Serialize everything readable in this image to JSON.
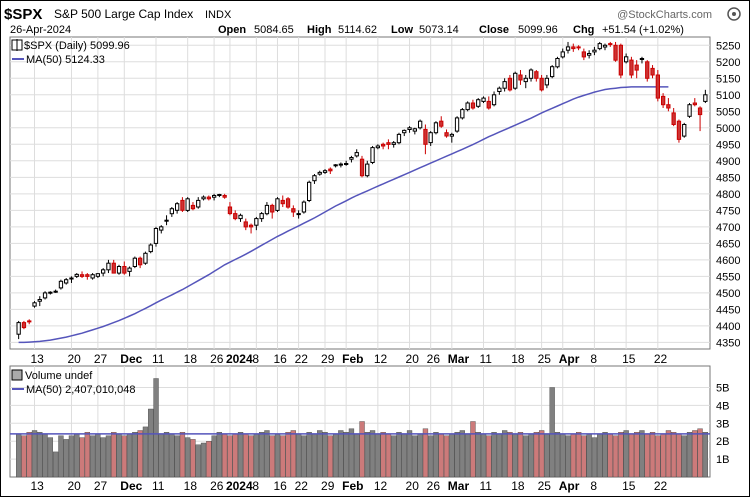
{
  "header": {
    "symbol": "$SPX",
    "name": "S&P 500 Large Cap Index",
    "exchange": "INDX",
    "watermark": "@StockCharts.com",
    "date": "26-Apr-2024",
    "open_label": "Open",
    "open": "5084.65",
    "high_label": "High",
    "high": "5114.62",
    "low_label": "Low",
    "low": "5073.14",
    "close_label": "Close",
    "close": "5099.96",
    "chg_label": "Chg",
    "chg": "+51.54 (+1.02%)"
  },
  "legend": {
    "price": "$SPX (Daily) 5099.96",
    "ma": "MA(50) 5124.33",
    "volume": "Volume undef",
    "vol_ma": "MA(50) 2,407,010,048"
  },
  "colors": {
    "up": "#000000",
    "down": "#cc0000",
    "down_fill": "#cc3333",
    "ma_line": "#5555bb",
    "vol_up": "#808080",
    "vol_down": "#cc7a7a",
    "grid": "#dddddd"
  },
  "chart_data": [
    {
      "type": "candlestick",
      "title": "$SPX (Daily) 5099.96",
      "ylim": [
        4330,
        5275
      ],
      "y_ticks": [
        4350,
        4400,
        4450,
        4500,
        4550,
        4600,
        4650,
        4700,
        4750,
        4800,
        4850,
        4900,
        4950,
        5000,
        5050,
        5100,
        5150,
        5200,
        5250
      ],
      "x_ticks": [
        "13",
        "20",
        "27",
        "Dec",
        "11",
        "18",
        "26",
        "2024",
        "8",
        "16",
        "22",
        "29",
        "Feb",
        "12",
        "20",
        "26",
        "Mar",
        "11",
        "18",
        "25",
        "Apr",
        "8",
        "15",
        "22"
      ],
      "x_tick_bold": [
        "Dec",
        "2024",
        "Feb",
        "Mar",
        "Apr"
      ],
      "ma": [
        4350,
        4350,
        4351,
        4352,
        4353,
        4355,
        4357,
        4360,
        4363,
        4366,
        4370,
        4374,
        4378,
        4383,
        4388,
        4393,
        4398,
        4404,
        4410,
        4416,
        4423,
        4430,
        4437,
        4445,
        4453,
        4461,
        4470,
        4478,
        4486,
        4494,
        4502,
        4510,
        4519,
        4528,
        4537,
        4546,
        4555,
        4565,
        4575,
        4585,
        4593,
        4601,
        4609,
        4617,
        4626,
        4635,
        4644,
        4653,
        4662,
        4671,
        4679,
        4687,
        4695,
        4703,
        4711,
        4719,
        4727,
        4736,
        4745,
        4754,
        4763,
        4771,
        4779,
        4787,
        4795,
        4802,
        4809,
        4816,
        4823,
        4830,
        4837,
        4844,
        4851,
        4858,
        4865,
        4872,
        4879,
        4886,
        4893,
        4900,
        4907,
        4914,
        4921,
        4928,
        4935,
        4942,
        4949,
        4957,
        4965,
        4973,
        4980,
        4987,
        4994,
        5001,
        5008,
        5015,
        5022,
        5029,
        5037,
        5045,
        5052,
        5059,
        5066,
        5073,
        5080,
        5087,
        5093,
        5098,
        5103,
        5108,
        5112,
        5116,
        5118,
        5120,
        5122,
        5123,
        5124,
        5124,
        5124,
        5124,
        5124,
        5124,
        5124,
        5124
      ],
      "ohlc": [
        [
          4375,
          4415,
          4360,
          4410
        ],
        [
          4410,
          4415,
          4390,
          4395
        ],
        [
          4415,
          4420,
          4405,
          4412
        ],
        [
          4460,
          4475,
          4455,
          4470
        ],
        [
          4475,
          4490,
          4460,
          4480
        ],
        [
          4485,
          4505,
          4480,
          4500
        ],
        [
          4500,
          4505,
          4495,
          4502
        ],
        [
          4505,
          4510,
          4500,
          4505
        ],
        [
          4515,
          4540,
          4510,
          4535
        ],
        [
          4530,
          4545,
          4525,
          4540
        ],
        [
          4542,
          4550,
          4530,
          4545
        ],
        [
          4550,
          4560,
          4545,
          4556
        ],
        [
          4555,
          4565,
          4545,
          4550
        ],
        [
          4555,
          4560,
          4540,
          4550
        ],
        [
          4545,
          4560,
          4540,
          4555
        ],
        [
          4550,
          4560,
          4545,
          4558
        ],
        [
          4560,
          4575,
          4550,
          4570
        ],
        [
          4570,
          4600,
          4560,
          4590
        ],
        [
          4590,
          4600,
          4560,
          4560
        ],
        [
          4560,
          4585,
          4555,
          4580
        ],
        [
          4580,
          4595,
          4555,
          4560
        ],
        [
          4565,
          4580,
          4550,
          4575
        ],
        [
          4580,
          4610,
          4575,
          4605
        ],
        [
          4605,
          4610,
          4575,
          4585
        ],
        [
          4590,
          4625,
          4585,
          4620
        ],
        [
          4625,
          4650,
          4620,
          4645
        ],
        [
          4650,
          4700,
          4640,
          4695
        ],
        [
          4690,
          4705,
          4680,
          4700
        ],
        [
          4720,
          4735,
          4705,
          4720
        ],
        [
          4740,
          4760,
          4730,
          4755
        ],
        [
          4750,
          4775,
          4740,
          4770
        ],
        [
          4780,
          4790,
          4745,
          4750
        ],
        [
          4750,
          4790,
          4745,
          4785
        ],
        [
          4765,
          4775,
          4750,
          4755
        ],
        [
          4760,
          4790,
          4755,
          4780
        ],
        [
          4785,
          4795,
          4780,
          4790
        ],
        [
          4790,
          4795,
          4780,
          4785
        ],
        [
          4790,
          4800,
          4780,
          4795
        ],
        [
          4795,
          4800,
          4790,
          4798
        ],
        [
          4795,
          4800,
          4785,
          4790
        ],
        [
          4760,
          4775,
          4735,
          4740
        ],
        [
          4740,
          4750,
          4720,
          4725
        ],
        [
          4725,
          4740,
          4715,
          4735
        ],
        [
          4715,
          4725,
          4690,
          4700
        ],
        [
          4705,
          4710,
          4680,
          4700
        ],
        [
          4705,
          4730,
          4690,
          4725
        ],
        [
          4725,
          4745,
          4715,
          4740
        ],
        [
          4740,
          4775,
          4735,
          4765
        ],
        [
          4765,
          4770,
          4725,
          4745
        ],
        [
          4750,
          4790,
          4745,
          4785
        ],
        [
          4780,
          4795,
          4760,
          4770
        ],
        [
          4785,
          4790,
          4755,
          4760
        ],
        [
          4755,
          4765,
          4730,
          4745
        ],
        [
          4740,
          4750,
          4725,
          4740
        ],
        [
          4745,
          4780,
          4740,
          4775
        ],
        [
          4780,
          4840,
          4775,
          4835
        ],
        [
          4840,
          4860,
          4830,
          4855
        ],
        [
          4860,
          4870,
          4855,
          4865
        ],
        [
          4865,
          4875,
          4860,
          4870
        ],
        [
          4875,
          4880,
          4860,
          4870
        ],
        [
          4885,
          4890,
          4880,
          4888
        ],
        [
          4890,
          4895,
          4880,
          4890
        ],
        [
          4890,
          4900,
          4885,
          4892
        ],
        [
          4905,
          4915,
          4895,
          4910
        ],
        [
          4915,
          4935,
          4910,
          4925
        ],
        [
          4905,
          4915,
          4850,
          4855
        ],
        [
          4855,
          4900,
          4850,
          4890
        ],
        [
          4895,
          4945,
          4890,
          4940
        ],
        [
          4940,
          4950,
          4935,
          4945
        ],
        [
          4950,
          4955,
          4935,
          4945
        ],
        [
          4955,
          4965,
          4935,
          4950
        ],
        [
          4950,
          4960,
          4940,
          4955
        ],
        [
          4955,
          4985,
          4950,
          4980
        ],
        [
          4985,
          4995,
          4975,
          4992
        ],
        [
          4995,
          5005,
          4985,
          5000
        ],
        [
          4990,
          5000,
          4980,
          4997
        ],
        [
          5000,
          5025,
          4995,
          5020
        ],
        [
          4995,
          5010,
          4920,
          4950
        ],
        [
          4955,
          4990,
          4945,
          4985
        ],
        [
          4985,
          5020,
          4980,
          5015
        ],
        [
          5020,
          5035,
          5000,
          5005
        ],
        [
          4985,
          4995,
          4970,
          4975
        ],
        [
          4975,
          4985,
          4955,
          4980
        ],
        [
          4990,
          5035,
          4985,
          5030
        ],
        [
          5030,
          5060,
          5025,
          5055
        ],
        [
          5055,
          5080,
          5050,
          5075
        ],
        [
          5075,
          5085,
          5055,
          5060
        ],
        [
          5065,
          5090,
          5060,
          5085
        ],
        [
          5080,
          5095,
          5075,
          5090
        ],
        [
          5080,
          5095,
          5055,
          5060
        ],
        [
          5070,
          5110,
          5065,
          5100
        ],
        [
          5110,
          5125,
          5100,
          5120
        ],
        [
          5120,
          5150,
          5110,
          5140
        ],
        [
          5150,
          5160,
          5110,
          5115
        ],
        [
          5120,
          5170,
          5115,
          5165
        ],
        [
          5160,
          5175,
          5130,
          5145
        ],
        [
          5140,
          5160,
          5120,
          5150
        ],
        [
          5150,
          5180,
          5140,
          5175
        ],
        [
          5170,
          5175,
          5140,
          5150
        ],
        [
          5150,
          5160,
          5110,
          5115
        ],
        [
          5130,
          5160,
          5120,
          5150
        ],
        [
          5155,
          5190,
          5150,
          5185
        ],
        [
          5185,
          5215,
          5180,
          5210
        ],
        [
          5215,
          5240,
          5210,
          5230
        ],
        [
          5235,
          5260,
          5225,
          5245
        ],
        [
          5245,
          5255,
          5230,
          5240
        ],
        [
          5245,
          5250,
          5235,
          5243
        ],
        [
          5230,
          5240,
          5205,
          5215
        ],
        [
          5220,
          5235,
          5210,
          5225
        ],
        [
          5230,
          5245,
          5220,
          5235
        ],
        [
          5240,
          5260,
          5235,
          5255
        ],
        [
          5245,
          5255,
          5235,
          5250
        ],
        [
          5255,
          5260,
          5245,
          5254
        ],
        [
          5250,
          5260,
          5200,
          5205
        ],
        [
          5250,
          5255,
          5150,
          5160
        ],
        [
          5200,
          5225,
          5195,
          5215
        ],
        [
          5205,
          5215,
          5150,
          5160
        ],
        [
          5190,
          5205,
          5150,
          5175
        ],
        [
          5210,
          5215,
          5195,
          5210
        ],
        [
          5200,
          5205,
          5140,
          5150
        ],
        [
          5180,
          5190,
          5150,
          5160
        ],
        [
          5160,
          5175,
          5080,
          5090
        ],
        [
          5095,
          5105,
          5060,
          5070
        ],
        [
          5070,
          5090,
          5050,
          5060
        ],
        [
          5045,
          5060,
          5005,
          5010
        ],
        [
          5020,
          5025,
          4955,
          4965
        ],
        [
          4975,
          5015,
          4970,
          5010
        ],
        [
          5035,
          5075,
          5030,
          5070
        ],
        [
          5075,
          5090,
          5065,
          5070
        ],
        [
          5060,
          5065,
          4990,
          5040
        ],
        [
          5080,
          5115,
          5075,
          5100
        ]
      ]
    },
    {
      "type": "bar",
      "title": "Volume undef",
      "ylim": [
        0,
        6.2
      ],
      "y_ticks": [
        1,
        2,
        3,
        4,
        5
      ],
      "y_tick_labels": [
        "1B",
        "2B",
        "3B",
        "4B",
        "5B"
      ],
      "ma_value": 2.407,
      "values": [
        2.4,
        2.3,
        2.5,
        2.6,
        2.5,
        2.4,
        2.2,
        1.4,
        2.3,
        2.1,
        2.3,
        2.4,
        2.2,
        2.5,
        2.3,
        2.4,
        2.2,
        2.3,
        2.5,
        2.4,
        2.3,
        2.4,
        2.5,
        2.6,
        2.8,
        3.8,
        5.5,
        2.4,
        2.5,
        2.4,
        2.3,
        2.5,
        2.2,
        2.1,
        1.8,
        1.9,
        2.0,
        2.3,
        2.5,
        2.4,
        2.3,
        2.4,
        2.5,
        2.4,
        2.3,
        2.4,
        2.5,
        2.6,
        2.3,
        2.4,
        2.3,
        2.5,
        2.6,
        2.4,
        2.3,
        2.5,
        2.4,
        2.6,
        2.5,
        2.3,
        2.4,
        2.6,
        2.5,
        2.7,
        2.4,
        3.1,
        2.5,
        2.6,
        2.4,
        2.5,
        2.4,
        2.3,
        2.5,
        2.4,
        2.6,
        2.3,
        2.4,
        2.7,
        2.3,
        2.5,
        2.4,
        2.3,
        2.4,
        2.5,
        2.6,
        2.4,
        3.1,
        2.5,
        2.4,
        2.3,
        2.5,
        2.4,
        2.6,
        2.5,
        2.4,
        2.5,
        2.3,
        2.4,
        2.5,
        2.6,
        2.4,
        5.0,
        2.5,
        2.4,
        2.3,
        2.4,
        2.5,
        2.3,
        2.4,
        2.2,
        2.4,
        2.5,
        2.4,
        2.3,
        2.5,
        2.6,
        2.4,
        2.5,
        2.6,
        2.4,
        2.5,
        2.3,
        2.4,
        2.6,
        2.5,
        2.4,
        2.3,
        2.5,
        2.6,
        2.7,
        2.5
      ]
    }
  ]
}
